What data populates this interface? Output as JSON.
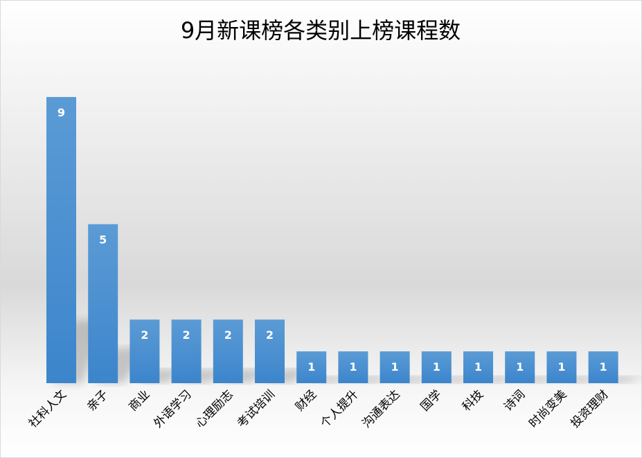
{
  "chart_data": {
    "type": "bar",
    "title": "9月新课榜各类别上榜课程数",
    "categories": [
      "社科人文",
      "亲子",
      "商业",
      "外语学习",
      "心理励志",
      "考试培训",
      "财经",
      "个人提升",
      "沟通表达",
      "国学",
      "科技",
      "诗词",
      "时尚变美",
      "投资理财"
    ],
    "values": [
      9,
      5,
      2,
      2,
      2,
      2,
      1,
      1,
      1,
      1,
      1,
      1,
      1,
      1
    ],
    "ylim": [
      0,
      9
    ],
    "grid": false,
    "legend": "none",
    "data_labels": true,
    "colors": {
      "bar_top": "#5b9bd5",
      "bar_bottom": "#3c85cc",
      "label": "#ffffff",
      "border": "#d9d9d9",
      "title": "#000000"
    }
  }
}
